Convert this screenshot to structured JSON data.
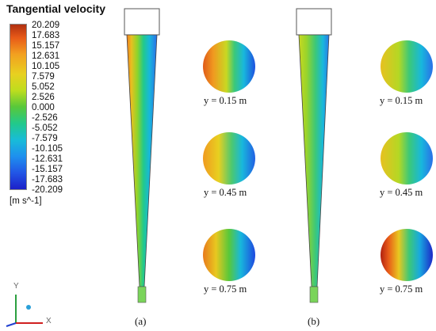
{
  "figure": {
    "title": "Tangential velocity",
    "unit": "[m s^-1]",
    "colorbar_ticks": [
      "20.209",
      "17.683",
      "15.157",
      "12.631",
      "10.105",
      "7.579",
      "5.052",
      "2.526",
      "0.000",
      "-2.526",
      "-5.052",
      "-7.579",
      "-10.105",
      "-12.631",
      "-15.157",
      "-17.683",
      "-20.209"
    ],
    "colorbar_range": [
      -20.209,
      20.209
    ],
    "colormap": [
      "#b03010",
      "#e85a18",
      "#f2a020",
      "#e8d020",
      "#bedd1e",
      "#58c83a",
      "#22c98a",
      "#18bcd8",
      "#1e90ee",
      "#2256e6",
      "#1c20c8"
    ],
    "panels": [
      {
        "label": "(a)",
        "sections": [
          "y = 0.15 m",
          "y = 0.45 m",
          "y = 0.75 m"
        ]
      },
      {
        "label": "(b)",
        "sections": [
          "y = 0.15 m",
          "y = 0.45 m",
          "y = 0.75 m"
        ]
      }
    ],
    "triad": {
      "y": "Y",
      "x": "X"
    }
  }
}
